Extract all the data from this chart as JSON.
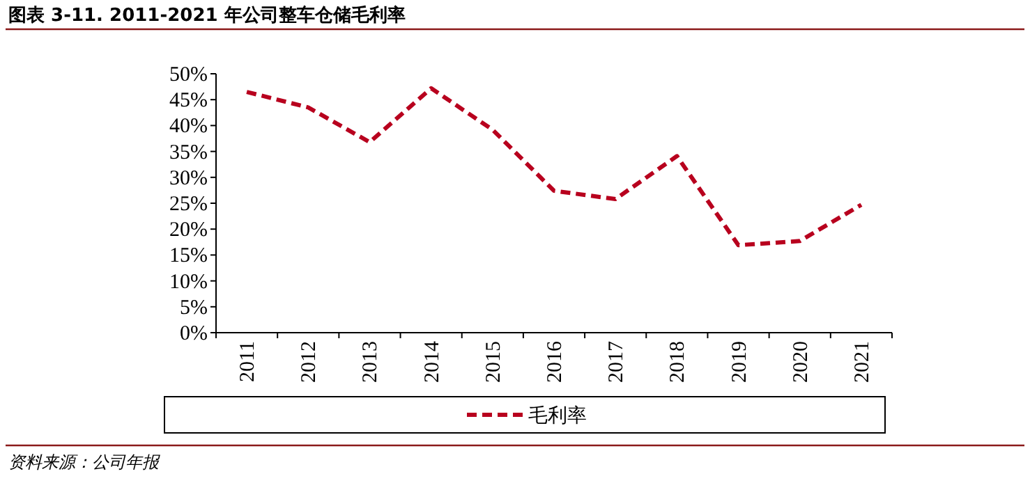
{
  "chart_data": {
    "type": "line",
    "title": "图表 3-11. 2011-2021 年公司整车仓储毛利率",
    "categories": [
      "2011",
      "2012",
      "2013",
      "2014",
      "2015",
      "2016",
      "2017",
      "2018",
      "2019",
      "2020",
      "2021"
    ],
    "series": [
      {
        "name": "毛利率",
        "color": "#b8001e",
        "values": [
          46.5,
          43.5,
          36.8,
          47.2,
          39.2,
          27.4,
          25.8,
          34.1,
          16.9,
          17.7,
          24.7
        ]
      }
    ],
    "ylim": [
      0,
      50
    ],
    "yticks": [
      {
        "value": 0,
        "label": "0%"
      },
      {
        "value": 5,
        "label": "5%"
      },
      {
        "value": 10,
        "label": "10%"
      },
      {
        "value": 15,
        "label": "15%"
      },
      {
        "value": 20,
        "label": "20%"
      },
      {
        "value": 25,
        "label": "25%"
      },
      {
        "value": 30,
        "label": "30%"
      },
      {
        "value": 35,
        "label": "35%"
      },
      {
        "value": 40,
        "label": "40%"
      },
      {
        "value": 45,
        "label": "45%"
      },
      {
        "value": 50,
        "label": "50%"
      }
    ],
    "line_style": "dashed",
    "marker": "none",
    "legend": "bottom",
    "grid": false,
    "annotations": [
      "资料来源：公司年报"
    ]
  }
}
